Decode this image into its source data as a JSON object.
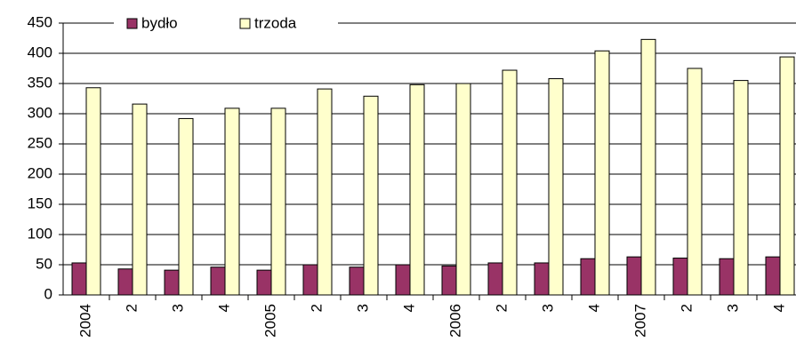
{
  "chart_data": {
    "type": "bar",
    "categories": [
      "2004",
      "2",
      "3",
      "4",
      "2005",
      "2",
      "3",
      "4",
      "2006",
      "2",
      "3",
      "4",
      "2007",
      "2",
      "3",
      "4"
    ],
    "series": [
      {
        "name": "bydło",
        "color": "#993366",
        "values": [
          53,
          43,
          41,
          46,
          41,
          50,
          46,
          50,
          48,
          53,
          53,
          60,
          63,
          61,
          60,
          63
        ]
      },
      {
        "name": "trzoda",
        "color": "#ffffcc",
        "values": [
          343,
          316,
          292,
          309,
          309,
          341,
          329,
          348,
          350,
          372,
          358,
          404,
          423,
          375,
          355,
          394
        ]
      }
    ],
    "ylim": [
      0,
      450
    ],
    "yticks": [
      0,
      50,
      100,
      150,
      200,
      250,
      300,
      350,
      400,
      450
    ],
    "grid": true,
    "legend": "top"
  }
}
